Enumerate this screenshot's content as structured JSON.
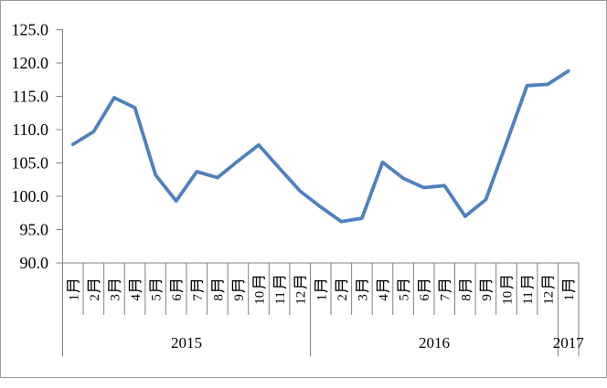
{
  "chart_data": {
    "type": "line",
    "title": "",
    "legend_position": "none",
    "grid": false,
    "line_color": "#4F81BD",
    "axis_color": "#808080",
    "border_color": "#9b9b9b",
    "ylim": [
      90,
      125
    ],
    "y_tick_step": 5,
    "y_ticks": [
      "125.0",
      "120.0",
      "115.0",
      "110.0",
      "105.0",
      "100.0",
      "95.0",
      "90.0"
    ],
    "x_groups": [
      {
        "year": "2015",
        "months": [
          "1月",
          "2月",
          "3月",
          "4月",
          "5月",
          "6月",
          "7月",
          "8月",
          "9月",
          "10月",
          "11月",
          "12月"
        ]
      },
      {
        "year": "2016",
        "months": [
          "1月",
          "2月",
          "3月",
          "4月",
          "5月",
          "6月",
          "7月",
          "8月",
          "9月",
          "10月",
          "11月",
          "12月"
        ]
      },
      {
        "year": "2017",
        "months": [
          "1月"
        ]
      }
    ],
    "values": [
      107.8,
      109.7,
      114.8,
      113.3,
      103.2,
      99.3,
      103.7,
      102.8,
      105.3,
      107.7,
      104.2,
      100.8,
      98.4,
      96.2,
      96.7,
      105.1,
      102.7,
      101.3,
      101.6,
      97.0,
      99.5,
      108.0,
      116.6,
      116.8,
      118.8
    ]
  }
}
